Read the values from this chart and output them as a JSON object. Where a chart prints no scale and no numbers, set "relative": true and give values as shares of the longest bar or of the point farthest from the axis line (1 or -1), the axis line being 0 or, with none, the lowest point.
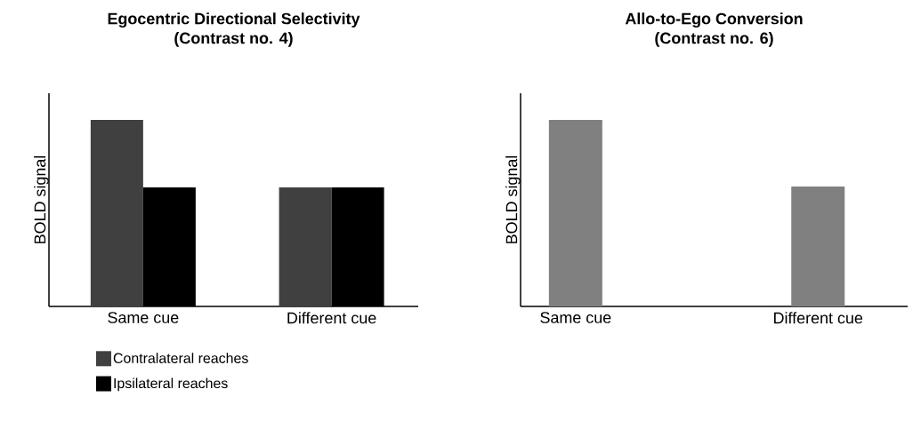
{
  "chart_data": [
    {
      "type": "bar",
      "title": "Egocentric  Directional Selectivity",
      "subtitle": "(Contrast no. 4)",
      "ylabel": "BOLD signal",
      "categories": [
        "Same cue",
        "Different cue"
      ],
      "relative": true,
      "legend": "bottom",
      "series": [
        {
          "name": "Contralateral reaches",
          "color": "#404040",
          "values": [
            1,
            0.638
          ]
        },
        {
          "name": "Ipsilateral reaches",
          "color": "#000000",
          "values": [
            0.638,
            0.638
          ]
        }
      ]
    },
    {
      "type": "bar",
      "title": "Allo-to-Ego Conversion",
      "subtitle": "(Contrast no. 6)",
      "ylabel": "BOLD signal",
      "categories": [
        "Same cue",
        "Different cue"
      ],
      "relative": true,
      "series": [
        {
          "color": "#808080",
          "values": [
            1,
            0.643
          ]
        }
      ]
    }
  ]
}
